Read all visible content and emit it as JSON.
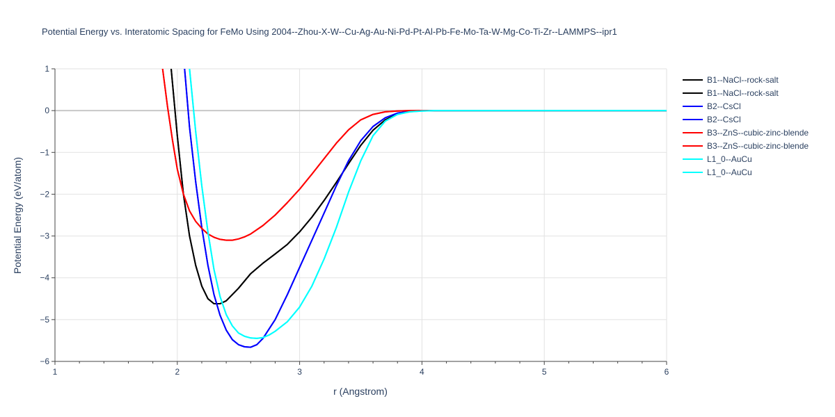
{
  "chart_data": {
    "type": "line",
    "title": "Potential Energy vs. Interatomic Spacing for FeMo Using 2004--Zhou-X-W--Cu-Ag-Au-Ni-Pd-Pt-Al-Pb-Fe-Mo-Ta-W-Mg-Co-Ti-Zr--LAMMPS--ipr1",
    "xlabel": "r (Angstrom)",
    "ylabel": "Potential Energy (eV/atom)",
    "xlim": [
      1,
      6
    ],
    "ylim": [
      -6,
      1
    ],
    "x_ticks": [
      1,
      2,
      3,
      4,
      5,
      6
    ],
    "y_ticks": [
      1,
      0,
      -1,
      -2,
      -3,
      -4,
      -5,
      -6
    ],
    "x_tick_labels": [
      "1",
      "2",
      "3",
      "4",
      "5",
      "6"
    ],
    "y_tick_labels": [
      "1",
      "0",
      "−1",
      "−2",
      "−3",
      "−4",
      "−5",
      "−6"
    ],
    "grid": true,
    "legend_position": "right",
    "series": [
      {
        "name": "B1--NaCl--rock-salt",
        "color": "#000000",
        "x": [
          1.95,
          2.0,
          2.05,
          2.1,
          2.15,
          2.2,
          2.25,
          2.3,
          2.35,
          2.4,
          2.45,
          2.5,
          2.6,
          2.7,
          2.8,
          2.9,
          3.0,
          3.1,
          3.2,
          3.3,
          3.4,
          3.5,
          3.6,
          3.7,
          3.8,
          3.9,
          4.0,
          4.1,
          4.5,
          5.0,
          5.5,
          6.0
        ],
        "y": [
          1.0,
          -0.6,
          -2.0,
          -3.0,
          -3.7,
          -4.2,
          -4.5,
          -4.62,
          -4.62,
          -4.55,
          -4.4,
          -4.25,
          -3.9,
          -3.65,
          -3.43,
          -3.2,
          -2.9,
          -2.55,
          -2.15,
          -1.72,
          -1.27,
          -0.83,
          -0.47,
          -0.22,
          -0.08,
          -0.02,
          0.0,
          0.0,
          0.0,
          0.0,
          0.0,
          0.0
        ]
      },
      {
        "name": "B1--NaCl--rock-salt",
        "color": "#000000",
        "x": [
          1.95,
          2.0,
          2.05,
          2.1,
          2.15,
          2.2,
          2.25,
          2.3,
          2.35,
          2.4,
          2.45,
          2.5,
          2.6,
          2.7,
          2.8,
          2.9,
          3.0,
          3.1,
          3.2,
          3.3,
          3.4,
          3.5,
          3.6,
          3.7,
          3.8,
          3.9,
          4.0,
          4.1,
          4.5,
          5.0,
          5.5,
          6.0
        ],
        "y": [
          1.0,
          -0.6,
          -2.0,
          -3.0,
          -3.7,
          -4.2,
          -4.5,
          -4.62,
          -4.62,
          -4.55,
          -4.4,
          -4.25,
          -3.9,
          -3.65,
          -3.43,
          -3.2,
          -2.9,
          -2.55,
          -2.15,
          -1.72,
          -1.27,
          -0.83,
          -0.47,
          -0.22,
          -0.08,
          -0.02,
          0.0,
          0.0,
          0.0,
          0.0,
          0.0,
          0.0
        ]
      },
      {
        "name": "B2--CsCl",
        "color": "#0000ff",
        "x": [
          2.06,
          2.1,
          2.15,
          2.2,
          2.25,
          2.3,
          2.35,
          2.4,
          2.45,
          2.5,
          2.55,
          2.6,
          2.65,
          2.7,
          2.8,
          2.9,
          3.0,
          3.1,
          3.2,
          3.3,
          3.4,
          3.5,
          3.6,
          3.7,
          3.8,
          3.9,
          4.0,
          4.1,
          4.5,
          5.0,
          5.5,
          6.0
        ],
        "y": [
          1.0,
          -0.4,
          -1.7,
          -2.8,
          -3.7,
          -4.4,
          -4.9,
          -5.25,
          -5.48,
          -5.6,
          -5.65,
          -5.66,
          -5.6,
          -5.45,
          -5.0,
          -4.4,
          -3.75,
          -3.1,
          -2.45,
          -1.8,
          -1.2,
          -0.72,
          -0.38,
          -0.17,
          -0.06,
          -0.02,
          0.0,
          0.0,
          0.0,
          0.0,
          0.0,
          0.0
        ]
      },
      {
        "name": "B2--CsCl",
        "color": "#0000ff",
        "x": [
          2.06,
          2.1,
          2.15,
          2.2,
          2.25,
          2.3,
          2.35,
          2.4,
          2.45,
          2.5,
          2.55,
          2.6,
          2.65,
          2.7,
          2.8,
          2.9,
          3.0,
          3.1,
          3.2,
          3.3,
          3.4,
          3.5,
          3.6,
          3.7,
          3.8,
          3.9,
          4.0,
          4.1,
          4.5,
          5.0,
          5.5,
          6.0
        ],
        "y": [
          1.0,
          -0.4,
          -1.7,
          -2.8,
          -3.7,
          -4.4,
          -4.9,
          -5.25,
          -5.48,
          -5.6,
          -5.65,
          -5.66,
          -5.6,
          -5.45,
          -5.0,
          -4.4,
          -3.75,
          -3.1,
          -2.45,
          -1.8,
          -1.2,
          -0.72,
          -0.38,
          -0.17,
          -0.06,
          -0.02,
          0.0,
          0.0,
          0.0,
          0.0,
          0.0,
          0.0
        ]
      },
      {
        "name": "B3--ZnS--cubic-zinc-blende",
        "color": "#ff0000",
        "x": [
          1.88,
          1.92,
          1.96,
          2.0,
          2.05,
          2.1,
          2.15,
          2.2,
          2.25,
          2.3,
          2.35,
          2.4,
          2.45,
          2.5,
          2.55,
          2.6,
          2.7,
          2.8,
          2.9,
          3.0,
          3.1,
          3.2,
          3.3,
          3.4,
          3.5,
          3.6,
          3.7,
          3.8,
          3.9,
          4.0,
          4.5,
          5.0,
          6.0
        ],
        "y": [
          1.0,
          0.1,
          -0.7,
          -1.4,
          -2.0,
          -2.4,
          -2.65,
          -2.82,
          -2.95,
          -3.03,
          -3.08,
          -3.1,
          -3.1,
          -3.07,
          -3.02,
          -2.95,
          -2.75,
          -2.5,
          -2.2,
          -1.88,
          -1.52,
          -1.15,
          -0.78,
          -0.46,
          -0.22,
          -0.09,
          -0.03,
          -0.01,
          0.0,
          0.0,
          0.0,
          0.0,
          0.0
        ]
      },
      {
        "name": "B3--ZnS--cubic-zinc-blende",
        "color": "#ff0000",
        "x": [
          1.88,
          1.92,
          1.96,
          2.0,
          2.05,
          2.1,
          2.15,
          2.2,
          2.25,
          2.3,
          2.35,
          2.4,
          2.45,
          2.5,
          2.55,
          2.6,
          2.7,
          2.8,
          2.9,
          3.0,
          3.1,
          3.2,
          3.3,
          3.4,
          3.5,
          3.6,
          3.7,
          3.8,
          3.9,
          4.0,
          4.5,
          5.0,
          6.0
        ],
        "y": [
          1.0,
          0.1,
          -0.7,
          -1.4,
          -2.0,
          -2.4,
          -2.65,
          -2.82,
          -2.95,
          -3.03,
          -3.08,
          -3.1,
          -3.1,
          -3.07,
          -3.02,
          -2.95,
          -2.75,
          -2.5,
          -2.2,
          -1.88,
          -1.52,
          -1.15,
          -0.78,
          -0.46,
          -0.22,
          -0.09,
          -0.03,
          -0.01,
          0.0,
          0.0,
          0.0,
          0.0,
          0.0
        ]
      },
      {
        "name": "L1_0--AuCu",
        "color": "#00ffff",
        "x": [
          2.1,
          2.15,
          2.2,
          2.25,
          2.3,
          2.35,
          2.4,
          2.45,
          2.5,
          2.55,
          2.6,
          2.65,
          2.7,
          2.75,
          2.8,
          2.9,
          3.0,
          3.1,
          3.2,
          3.3,
          3.4,
          3.5,
          3.6,
          3.7,
          3.8,
          3.9,
          4.0,
          4.1,
          4.5,
          5.0,
          5.5,
          6.0
        ],
        "y": [
          1.0,
          -0.5,
          -1.8,
          -2.9,
          -3.8,
          -4.45,
          -4.88,
          -5.15,
          -5.32,
          -5.4,
          -5.44,
          -5.45,
          -5.43,
          -5.37,
          -5.28,
          -5.05,
          -4.7,
          -4.2,
          -3.55,
          -2.8,
          -1.95,
          -1.2,
          -0.6,
          -0.25,
          -0.09,
          -0.03,
          -0.01,
          0.0,
          0.0,
          0.0,
          0.0,
          0.0
        ]
      },
      {
        "name": "L1_0--AuCu",
        "color": "#00ffff",
        "x": [
          2.1,
          2.15,
          2.2,
          2.25,
          2.3,
          2.35,
          2.4,
          2.45,
          2.5,
          2.55,
          2.6,
          2.65,
          2.7,
          2.75,
          2.8,
          2.9,
          3.0,
          3.1,
          3.2,
          3.3,
          3.4,
          3.5,
          3.6,
          3.7,
          3.8,
          3.9,
          4.0,
          4.1,
          4.5,
          5.0,
          5.5,
          6.0
        ],
        "y": [
          1.0,
          -0.5,
          -1.8,
          -2.9,
          -3.8,
          -4.45,
          -4.88,
          -5.15,
          -5.32,
          -5.4,
          -5.44,
          -5.45,
          -5.43,
          -5.37,
          -5.28,
          -5.05,
          -4.7,
          -4.2,
          -3.55,
          -2.8,
          -1.95,
          -1.2,
          -0.6,
          -0.25,
          -0.09,
          -0.03,
          -0.01,
          0.0,
          0.0,
          0.0,
          0.0,
          0.0
        ]
      }
    ]
  }
}
